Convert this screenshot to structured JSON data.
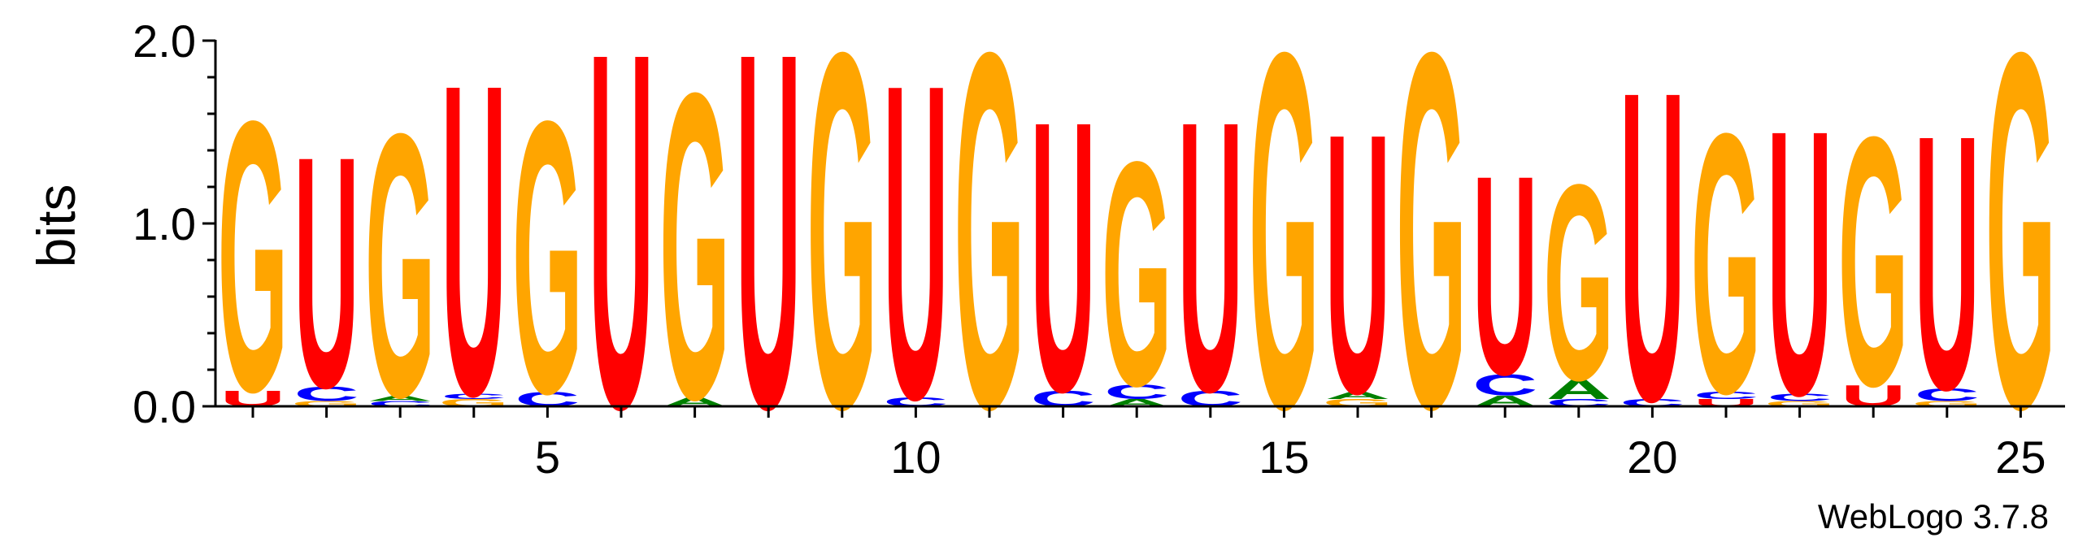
{
  "chart_data": {
    "type": "sequence-logo",
    "ylabel": "bits",
    "ylim": [
      0,
      2.0
    ],
    "y_ticks": [
      "0.0",
      "1.0",
      "2.0"
    ],
    "x_ticks": [
      "5",
      "10",
      "15",
      "20",
      "25"
    ],
    "footer": "WebLogo 3.7.8",
    "colors": {
      "G": "#FFA500",
      "U": "#FF0000",
      "C": "#0000FF",
      "A": "#008000"
    },
    "positions": [
      {
        "pos": 1,
        "letters": [
          [
            "U",
            0.09
          ],
          [
            "G",
            1.52
          ]
        ]
      },
      {
        "pos": 2,
        "letters": [
          [
            "G",
            0.03
          ],
          [
            "C",
            0.08
          ],
          [
            "U",
            1.3
          ]
        ]
      },
      {
        "pos": 3,
        "letters": [
          [
            "C",
            0.03
          ],
          [
            "A",
            0.03
          ],
          [
            "G",
            1.48
          ]
        ]
      },
      {
        "pos": 4,
        "letters": [
          [
            "G",
            0.04
          ],
          [
            "C",
            0.03
          ],
          [
            "U",
            1.75
          ]
        ]
      },
      {
        "pos": 5,
        "letters": [
          [
            "C",
            0.08
          ],
          [
            "G",
            1.53
          ]
        ]
      },
      {
        "pos": 6,
        "letters": [
          [
            "U",
            2.0
          ]
        ]
      },
      {
        "pos": 7,
        "letters": [
          [
            "A",
            0.05
          ],
          [
            "G",
            1.72
          ]
        ]
      },
      {
        "pos": 8,
        "letters": [
          [
            "U",
            2.0
          ]
        ]
      },
      {
        "pos": 9,
        "letters": [
          [
            "G",
            2.0
          ]
        ]
      },
      {
        "pos": 10,
        "letters": [
          [
            "C",
            0.05
          ],
          [
            "U",
            1.77
          ]
        ]
      },
      {
        "pos": 11,
        "letters": [
          [
            "G",
            2.0
          ]
        ]
      },
      {
        "pos": 12,
        "letters": [
          [
            "C",
            0.09
          ],
          [
            "U",
            1.52
          ]
        ]
      },
      {
        "pos": 13,
        "letters": [
          [
            "A",
            0.04
          ],
          [
            "C",
            0.08
          ],
          [
            "G",
            1.26
          ]
        ]
      },
      {
        "pos": 14,
        "letters": [
          [
            "C",
            0.09
          ],
          [
            "U",
            1.52
          ]
        ]
      },
      {
        "pos": 15,
        "letters": [
          [
            "G",
            2.0
          ]
        ]
      },
      {
        "pos": 16,
        "letters": [
          [
            "G",
            0.04
          ],
          [
            "A",
            0.04
          ],
          [
            "U",
            1.46
          ]
        ]
      },
      {
        "pos": 17,
        "letters": [
          [
            "G",
            2.0
          ]
        ]
      },
      {
        "pos": 18,
        "letters": [
          [
            "A",
            0.06
          ],
          [
            "C",
            0.12
          ],
          [
            "U",
            1.12
          ]
        ]
      },
      {
        "pos": 19,
        "letters": [
          [
            "C",
            0.04
          ],
          [
            "A",
            0.11
          ],
          [
            "G",
            1.1
          ]
        ]
      },
      {
        "pos": 20,
        "letters": [
          [
            "C",
            0.04
          ],
          [
            "U",
            1.74
          ]
        ]
      },
      {
        "pos": 21,
        "letters": [
          [
            "U",
            0.04
          ],
          [
            "C",
            0.04
          ],
          [
            "G",
            1.46
          ]
        ]
      },
      {
        "pos": 22,
        "letters": [
          [
            "G",
            0.03
          ],
          [
            "C",
            0.04
          ],
          [
            "U",
            1.49
          ]
        ]
      },
      {
        "pos": 23,
        "letters": [
          [
            "U",
            0.12
          ],
          [
            "G",
            1.4
          ]
        ]
      },
      {
        "pos": 24,
        "letters": [
          [
            "G",
            0.03
          ],
          [
            "C",
            0.07
          ],
          [
            "U",
            1.43
          ]
        ]
      },
      {
        "pos": 25,
        "letters": [
          [
            "G",
            2.0
          ]
        ]
      }
    ]
  }
}
